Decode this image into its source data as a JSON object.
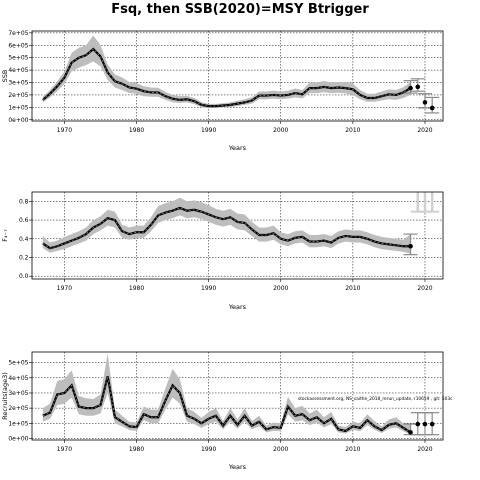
{
  "figure": {
    "title": "Fsq, then SSB(2020)=MSY Btrigger",
    "annotation": "stockassessment.org, NS_saithe_2018_rerun_update, r10659 , git: 503c",
    "colors": {
      "band": "#bdbdbd",
      "line": "#000000",
      "dash": "#7f7f7f",
      "grid": "#000000"
    }
  },
  "chart_data": [
    {
      "type": "line",
      "title": "",
      "xlabel": "Years",
      "ylabel": "SSB",
      "xlim": [
        1965.5,
        2022.5
      ],
      "ylim": [
        -10000,
        715000
      ],
      "xticks": [
        1970,
        1980,
        1990,
        2000,
        2010,
        2020
      ],
      "yticks": [
        0,
        100000,
        200000,
        300000,
        400000,
        500000,
        600000,
        700000
      ],
      "ytick_labels": [
        "0e+00",
        "1e+05",
        "2e+05",
        "3e+05",
        "4e+05",
        "5e+05",
        "6e+05",
        "7e+05"
      ],
      "grid": true,
      "series": [
        {
          "x": [
            1967,
            1968,
            1969,
            1970,
            1971,
            1972,
            1973,
            1974,
            1975,
            1976,
            1977,
            1978,
            1979,
            1980,
            1981,
            1982,
            1983,
            1984,
            1985,
            1986,
            1987,
            1988,
            1989,
            1990,
            1991,
            1992,
            1993,
            1994,
            1995,
            1996,
            1997,
            1998,
            1999,
            2000,
            2001,
            2002,
            2003,
            2004,
            2005,
            2006,
            2007,
            2008,
            2009,
            2010,
            2011,
            2012,
            2013,
            2014,
            2015,
            2016,
            2017,
            2018
          ],
          "values": [
            160000,
            210000,
            270000,
            340000,
            460000,
            500000,
            520000,
            570000,
            510000,
            380000,
            310000,
            290000,
            260000,
            250000,
            230000,
            220000,
            220000,
            190000,
            170000,
            160000,
            165000,
            150000,
            120000,
            110000,
            110000,
            115000,
            120000,
            130000,
            140000,
            155000,
            195000,
            195000,
            200000,
            195000,
            200000,
            215000,
            205000,
            255000,
            255000,
            265000,
            255000,
            260000,
            255000,
            245000,
            200000,
            175000,
            175000,
            190000,
            205000,
            200000,
            220000,
            255000
          ],
          "lower": [
            140000,
            180000,
            230000,
            290000,
            390000,
            420000,
            440000,
            470000,
            430000,
            320000,
            260000,
            240000,
            215000,
            210000,
            190000,
            185000,
            185000,
            160000,
            140000,
            135000,
            140000,
            125000,
            100000,
            95000,
            95000,
            100000,
            103000,
            110000,
            120000,
            130000,
            165000,
            165000,
            170000,
            165000,
            170000,
            180000,
            172000,
            215000,
            215000,
            222000,
            215000,
            218000,
            212000,
            200000,
            165000,
            145000,
            145000,
            155000,
            165000,
            160000,
            175000,
            200000
          ],
          "upper": [
            185000,
            240000,
            310000,
            390000,
            540000,
            580000,
            600000,
            680000,
            600000,
            445000,
            365000,
            340000,
            305000,
            295000,
            270000,
            260000,
            258000,
            225000,
            200000,
            190000,
            192000,
            176000,
            142000,
            128000,
            128000,
            133000,
            140000,
            152000,
            165000,
            182000,
            228000,
            228000,
            235000,
            228000,
            235000,
            252000,
            240000,
            300000,
            300000,
            312000,
            300000,
            305000,
            302000,
            292000,
            240000,
            210000,
            210000,
            228000,
            245000,
            240000,
            262000,
            305000
          ]
        }
      ],
      "forecast": {
        "x": [
          2018,
          2019,
          2020,
          2021
        ],
        "values": [
          255000,
          265000,
          140000,
          95000
        ],
        "lower": [
          215000,
          230000,
          95000,
          55000
        ],
        "upper": [
          315000,
          330000,
          210000,
          180000
        ]
      }
    },
    {
      "type": "line",
      "title": "",
      "xlabel": "Years",
      "ylabel": "F₄₋₇",
      "xlim": [
        1965.5,
        2022.5
      ],
      "ylim": [
        -0.03,
        0.9
      ],
      "xticks": [
        1970,
        1980,
        1990,
        2000,
        2010,
        2020
      ],
      "yticks": [
        0,
        0.2,
        0.4,
        0.6,
        0.8
      ],
      "ytick_labels": [
        "0.0",
        "0.2",
        "0.4",
        "0.6",
        "0.8"
      ],
      "grid": true,
      "series": [
        {
          "x": [
            1967,
            1968,
            1969,
            1970,
            1971,
            1972,
            1973,
            1974,
            1975,
            1976,
            1977,
            1978,
            1979,
            1980,
            1981,
            1982,
            1983,
            1984,
            1985,
            1986,
            1987,
            1988,
            1989,
            1990,
            1991,
            1992,
            1993,
            1994,
            1995,
            1996,
            1997,
            1998,
            1999,
            2000,
            2001,
            2002,
            2003,
            2004,
            2005,
            2006,
            2007,
            2008,
            2009,
            2010,
            2011,
            2012,
            2013,
            2014,
            2015,
            2016,
            2017,
            2018
          ],
          "values": [
            0.35,
            0.3,
            0.32,
            0.35,
            0.38,
            0.41,
            0.45,
            0.52,
            0.56,
            0.62,
            0.6,
            0.48,
            0.45,
            0.47,
            0.47,
            0.55,
            0.65,
            0.68,
            0.7,
            0.73,
            0.7,
            0.71,
            0.69,
            0.66,
            0.63,
            0.61,
            0.63,
            0.58,
            0.57,
            0.5,
            0.44,
            0.44,
            0.46,
            0.4,
            0.38,
            0.41,
            0.42,
            0.37,
            0.37,
            0.38,
            0.36,
            0.41,
            0.43,
            0.42,
            0.42,
            0.4,
            0.37,
            0.35,
            0.34,
            0.33,
            0.32,
            0.32
          ],
          "lower": [
            0.3,
            0.25,
            0.27,
            0.29,
            0.32,
            0.35,
            0.38,
            0.45,
            0.49,
            0.54,
            0.52,
            0.41,
            0.39,
            0.41,
            0.41,
            0.48,
            0.57,
            0.6,
            0.62,
            0.65,
            0.62,
            0.63,
            0.61,
            0.58,
            0.55,
            0.53,
            0.55,
            0.5,
            0.49,
            0.43,
            0.37,
            0.37,
            0.39,
            0.34,
            0.32,
            0.35,
            0.36,
            0.31,
            0.31,
            0.32,
            0.3,
            0.35,
            0.37,
            0.36,
            0.36,
            0.34,
            0.31,
            0.29,
            0.28,
            0.27,
            0.26,
            0.24
          ],
          "upper": [
            0.43,
            0.36,
            0.38,
            0.42,
            0.45,
            0.48,
            0.52,
            0.6,
            0.64,
            0.71,
            0.69,
            0.55,
            0.52,
            0.54,
            0.54,
            0.63,
            0.75,
            0.78,
            0.8,
            0.84,
            0.8,
            0.81,
            0.79,
            0.76,
            0.72,
            0.7,
            0.72,
            0.67,
            0.66,
            0.58,
            0.52,
            0.52,
            0.54,
            0.47,
            0.45,
            0.48,
            0.49,
            0.44,
            0.44,
            0.45,
            0.43,
            0.48,
            0.5,
            0.49,
            0.49,
            0.47,
            0.44,
            0.42,
            0.41,
            0.4,
            0.39,
            0.45
          ]
        }
      ],
      "forecast": {
        "x": [
          2018
        ],
        "values": [
          0.32
        ],
        "lower": [
          0.23
        ],
        "upper": [
          0.45
        ]
      },
      "ghost_bars": {
        "x": [
          2019,
          2020,
          2021
        ],
        "lower": [
          0.69,
          0.69,
          0.69
        ],
        "upper": [
          0.9,
          0.9,
          0.9
        ]
      }
    },
    {
      "type": "line",
      "title": "",
      "xlabel": "Years",
      "ylabel": "Recruits(age3)",
      "xlim": [
        1965.5,
        2022.5
      ],
      "ylim": [
        -10000,
        570000
      ],
      "xticks": [
        1970,
        1980,
        1990,
        2000,
        2010,
        2020
      ],
      "yticks": [
        0,
        100000,
        200000,
        300000,
        400000,
        500000
      ],
      "ytick_labels": [
        "0e+00",
        "1e+05",
        "2e+05",
        "3e+05",
        "4e+05",
        "5e+05"
      ],
      "grid": true,
      "series": [
        {
          "x": [
            1967,
            1968,
            1969,
            1970,
            1971,
            1972,
            1973,
            1974,
            1975,
            1976,
            1977,
            1978,
            1979,
            1980,
            1981,
            1982,
            1983,
            1984,
            1985,
            1986,
            1987,
            1988,
            1989,
            1990,
            1991,
            1992,
            1993,
            1994,
            1995,
            1996,
            1997,
            1998,
            1999,
            2000,
            2001,
            2002,
            2003,
            2004,
            2005,
            2006,
            2007,
            2008,
            2009,
            2010,
            2011,
            2012,
            2013,
            2014,
            2015,
            2016,
            2017,
            2018
          ],
          "values": [
            150000,
            170000,
            290000,
            300000,
            350000,
            210000,
            200000,
            200000,
            220000,
            410000,
            140000,
            110000,
            80000,
            75000,
            160000,
            140000,
            140000,
            250000,
            350000,
            300000,
            150000,
            130000,
            100000,
            130000,
            150000,
            85000,
            150000,
            90000,
            150000,
            85000,
            110000,
            60000,
            75000,
            70000,
            210000,
            150000,
            160000,
            120000,
            140000,
            100000,
            130000,
            60000,
            50000,
            80000,
            70000,
            120000,
            80000,
            55000,
            90000,
            100000,
            70000,
            40000
          ],
          "lower": [
            110000,
            130000,
            220000,
            230000,
            270000,
            160000,
            150000,
            150000,
            165000,
            300000,
            100000,
            80000,
            55000,
            50000,
            120000,
            100000,
            100000,
            190000,
            270000,
            230000,
            110000,
            95000,
            70000,
            95000,
            110000,
            60000,
            110000,
            65000,
            110000,
            60000,
            80000,
            40000,
            50000,
            48000,
            160000,
            110000,
            120000,
            88000,
            105000,
            72000,
            95000,
            40000,
            33000,
            57000,
            48000,
            88000,
            57000,
            36000,
            65000,
            72000,
            48000,
            25000
          ],
          "upper": [
            200000,
            230000,
            380000,
            390000,
            450000,
            280000,
            265000,
            260000,
            290000,
            560000,
            190000,
            150000,
            110000,
            105000,
            210000,
            190000,
            190000,
            330000,
            460000,
            390000,
            200000,
            175000,
            135000,
            175000,
            200000,
            115000,
            200000,
            125000,
            200000,
            115000,
            150000,
            85000,
            105000,
            100000,
            275000,
            200000,
            215000,
            165000,
            190000,
            140000,
            175000,
            85000,
            75000,
            110000,
            100000,
            160000,
            115000,
            80000,
            125000,
            140000,
            100000,
            95000
          ]
        }
      ],
      "forecast": {
        "x": [
          2018,
          2019,
          2020,
          2021
        ],
        "values": [
          40000,
          95000,
          95000,
          95000
        ],
        "lower": [
          25000,
          25000,
          25000,
          25000
        ],
        "upper": [
          95000,
          170000,
          170000,
          170000
        ]
      }
    }
  ]
}
